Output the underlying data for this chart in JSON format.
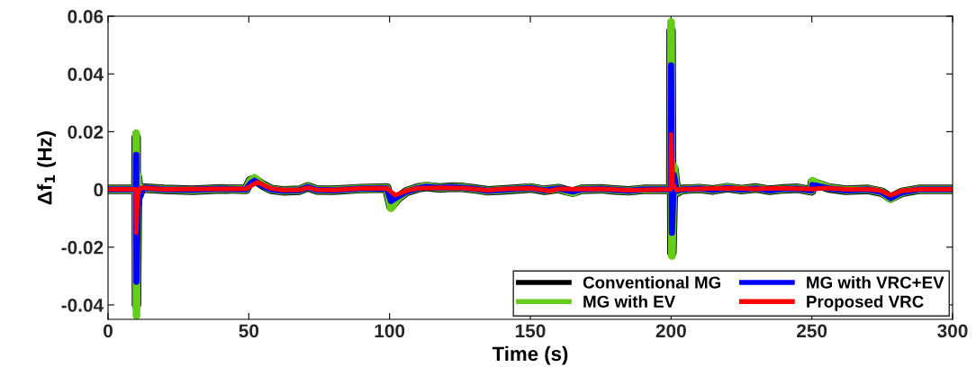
{
  "chart_data": {
    "type": "line",
    "xlabel": "Time (s)",
    "ylabel": "Δf$_{1}$ (Hz)",
    "xlim": [
      0,
      300
    ],
    "xticks": [
      0,
      50,
      100,
      150,
      200,
      250,
      300
    ],
    "ylim": [
      -0.045,
      0.06
    ],
    "yticks": [
      -0.04,
      -0.02,
      0,
      0.02,
      0.04,
      0.06
    ],
    "grid": false,
    "legend": "bottom right",
    "marker": "none",
    "line_style": "solid",
    "series": [
      {
        "name": "Conventional MG",
        "color": "#000000",
        "x": [
          0,
          9.9,
          10,
          10.1,
          10.5,
          11,
          12,
          20,
          30,
          40,
          49,
          50.5,
          52,
          55,
          58,
          62,
          68,
          71,
          74,
          80,
          90,
          99,
          100.5,
          103,
          106,
          110,
          113,
          118,
          122,
          126,
          130,
          135,
          140,
          146,
          150,
          155,
          160,
          165,
          168,
          175,
          180,
          185,
          190,
          199.9,
          200,
          200.3,
          201,
          202,
          204,
          210,
          215,
          220,
          225,
          230,
          235,
          240,
          245,
          249.9,
          250.2,
          252,
          256,
          262,
          270,
          275,
          278,
          282,
          288,
          300
        ],
        "values": [
          0,
          0,
          0.018,
          -0.04,
          0.004,
          -0.002,
          0.0005,
          0,
          -0.0003,
          0.0002,
          0,
          0.003,
          0.0035,
          0.0015,
          0,
          -0.0005,
          -0.0003,
          0.0009,
          -0.0002,
          -0.0003,
          0.0003,
          0.0005,
          -0.006,
          -0.003,
          -0.0008,
          0.0005,
          0.001,
          0.0005,
          0.0008,
          0.0007,
          0.0002,
          -0.0005,
          -0.0002,
          0.0002,
          0.0005,
          -0.0003,
          0.0003,
          -0.001,
          0,
          0.0002,
          -0.0002,
          -0.0005,
          0,
          0,
          0.055,
          -0.022,
          0.007,
          -0.001,
          0,
          0.0003,
          -0.0002,
          0.0006,
          -0.0001,
          0.0005,
          -0.0003,
          0.0002,
          0.0004,
          -0.0005,
          0.0025,
          0.0018,
          0.0005,
          -0.0003,
          0,
          -0.001,
          -0.003,
          -0.001,
          0,
          0
        ]
      },
      {
        "name": "MG with EV",
        "color": "#66cc1a",
        "x": [
          0,
          9.9,
          10,
          10.1,
          10.5,
          11,
          12,
          20,
          30,
          40,
          49,
          50.5,
          52,
          55,
          58,
          62,
          68,
          71,
          74,
          80,
          90,
          99,
          100.5,
          103,
          106,
          110,
          113,
          118,
          122,
          126,
          130,
          135,
          140,
          146,
          150,
          155,
          160,
          165,
          168,
          175,
          180,
          185,
          190,
          199.9,
          200,
          200.3,
          201,
          202,
          204,
          210,
          215,
          220,
          225,
          230,
          235,
          240,
          245,
          249.9,
          250.2,
          252,
          256,
          262,
          270,
          275,
          278,
          282,
          288,
          300
        ],
        "values": [
          0,
          0,
          0.0195,
          -0.0437,
          0.005,
          -0.002,
          0.0005,
          0,
          -0.0003,
          0.0002,
          0,
          0.003,
          0.004,
          0.0015,
          0,
          -0.0005,
          -0.0003,
          0.001,
          -0.0002,
          -0.0003,
          0.0003,
          0.0005,
          -0.0065,
          -0.003,
          -0.0008,
          0.0005,
          0.0012,
          0.0005,
          0.0008,
          0.0007,
          0.0002,
          -0.0005,
          -0.0002,
          0.0002,
          0.0006,
          -0.0003,
          0.0003,
          -0.0012,
          0,
          0.0002,
          -0.0002,
          -0.0005,
          0,
          0,
          0.058,
          -0.023,
          0.008,
          -0.001,
          0,
          0.0003,
          -0.0002,
          0.0007,
          -0.0001,
          0.0005,
          -0.0003,
          0.0002,
          0.0004,
          -0.0005,
          0.003,
          0.002,
          0.0006,
          -0.0003,
          0,
          -0.001,
          -0.0033,
          -0.001,
          0,
          0
        ]
      },
      {
        "name": "MG with VRC+EV",
        "color": "#0000ff",
        "x": [
          0,
          9.9,
          10,
          10.1,
          10.6,
          11.5,
          13,
          20,
          30,
          40,
          49,
          50.5,
          52,
          55,
          58,
          62,
          68,
          71,
          74,
          80,
          90,
          99,
          100.5,
          103,
          106,
          110,
          113,
          118,
          122,
          126,
          130,
          135,
          140,
          146,
          150,
          155,
          160,
          165,
          168,
          175,
          180,
          185,
          190,
          199.9,
          200,
          200.3,
          201,
          202,
          204,
          210,
          215,
          220,
          225,
          230,
          235,
          240,
          245,
          249.9,
          250.2,
          252,
          256,
          262,
          270,
          275,
          278,
          282,
          288,
          300
        ],
        "values": [
          0,
          0,
          0.012,
          -0.032,
          -0.006,
          -0.001,
          0.0005,
          0,
          -0.0002,
          0.0002,
          0,
          0.002,
          0.003,
          0.0012,
          0,
          -0.0005,
          -0.0003,
          0.0008,
          -0.0002,
          -0.0003,
          0.0003,
          0.0004,
          -0.004,
          -0.0025,
          -0.0008,
          0.0004,
          0.0009,
          0.0005,
          0.0008,
          0.0006,
          0.0002,
          -0.0005,
          -0.0002,
          0.0002,
          0.0005,
          -0.0003,
          0.0003,
          -0.0007,
          0,
          0.0002,
          -0.0002,
          -0.0005,
          0,
          0,
          0.043,
          -0.015,
          0.005,
          -0.0005,
          0,
          0.0003,
          -0.0002,
          0.0005,
          -0.0001,
          0.0004,
          -0.0003,
          0.0002,
          0.0003,
          -0.0004,
          0.0015,
          0.0012,
          0.0004,
          -0.0003,
          0,
          -0.001,
          -0.003,
          -0.001,
          0,
          0
        ]
      },
      {
        "name": "Proposed VRC",
        "color": "#ff0000",
        "x": [
          0,
          9.9,
          10,
          10.5,
          11.5,
          13,
          20,
          30,
          40,
          49,
          53,
          58,
          62,
          68,
          71,
          74,
          80,
          90,
          99,
          102,
          106,
          110,
          118,
          126,
          135,
          140,
          150,
          157,
          160,
          165,
          175,
          185,
          199.9,
          200,
          200.5,
          202,
          204,
          210,
          220,
          230,
          240,
          250,
          255,
          262,
          270,
          274,
          278,
          282,
          288,
          300
        ],
        "values": [
          0,
          0,
          -0.015,
          -0.002,
          0.0005,
          0.0005,
          0,
          0.0001,
          0.0002,
          0.0002,
          0.0025,
          0.0003,
          -0.0002,
          -0.0002,
          0.0006,
          -0.0001,
          -0.0002,
          0.0003,
          0.0004,
          -0.002,
          -0.0005,
          0.0004,
          0.0006,
          0.0005,
          -0.0003,
          0.0001,
          0.0004,
          -0.0005,
          0.0002,
          0.0001,
          0.0002,
          -0.0003,
          0,
          0.019,
          0.002,
          -0.0003,
          0.0001,
          0.0002,
          0.0004,
          0.0002,
          0.0004,
          0.0001,
          0.0005,
          0,
          0,
          -0.0003,
          -0.002,
          -0.0005,
          0,
          0
        ]
      }
    ]
  }
}
